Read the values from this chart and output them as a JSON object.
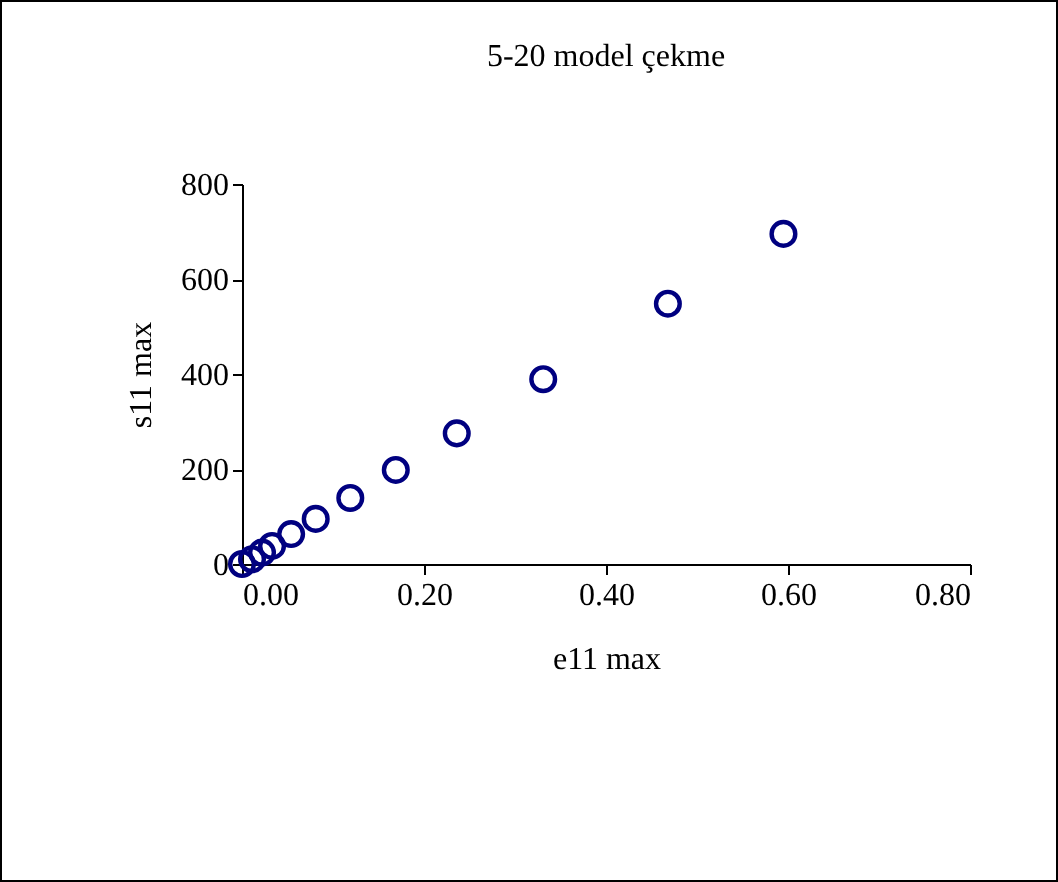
{
  "chart_data": {
    "type": "scatter",
    "title": "5-20 model çekme",
    "xlabel": "e11 max",
    "ylabel": "s11 max",
    "x": [
      0,
      0.011,
      0.022,
      0.033,
      0.054,
      0.081,
      0.119,
      0.169,
      0.236,
      0.331,
      0.468,
      0.595
    ],
    "series": [
      {
        "color": "#000080",
        "values": [
          0,
          10,
          24,
          38,
          63,
          95,
          139,
          198,
          275,
          389,
          548,
          695
        ]
      }
    ],
    "xlim": [
      0,
      0.8
    ],
    "xticks": [
      {
        "value": 0,
        "label": "0.00"
      },
      {
        "value": 0.2,
        "label": "0.20"
      },
      {
        "value": 0.4,
        "label": "0.40"
      },
      {
        "value": 0.6,
        "label": "0.60"
      },
      {
        "value": 0.8,
        "label": "0.80"
      }
    ],
    "ylim": [
      0,
      800
    ],
    "yticks": [
      0,
      200,
      400,
      600,
      800
    ],
    "marker": "circle",
    "grid": false,
    "legend": false
  }
}
